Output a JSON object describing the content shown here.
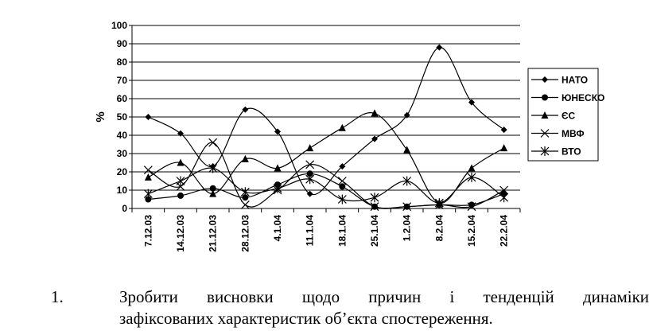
{
  "chart_data": {
    "type": "line",
    "title": "",
    "xlabel": "",
    "ylabel": "%",
    "ylim": [
      0,
      100
    ],
    "yticks": [
      "0",
      "10",
      "20",
      "30",
      "40",
      "50",
      "60",
      "70",
      "80",
      "90",
      "100"
    ],
    "categories": [
      "7.12.03",
      "14.12.03",
      "21.12.03",
      "28.12.03",
      "4.1.04",
      "11.1.04",
      "18.1.04",
      "25.1.04",
      "1.2.04",
      "8.2.04",
      "15.2.04",
      "22.2.04"
    ],
    "legend_position": "right",
    "grid": true,
    "series": [
      {
        "name": "НАТО",
        "marker": "diamond",
        "values": [
          50,
          41,
          23,
          54,
          42,
          8,
          23,
          38,
          51,
          88,
          58,
          43
        ]
      },
      {
        "name": "ЮНЕСКО",
        "marker": "circle",
        "values": [
          5,
          7,
          11,
          6,
          13,
          19,
          12,
          1,
          1,
          2,
          2,
          8
        ]
      },
      {
        "name": "ЄС",
        "marker": "triangle",
        "values": [
          17,
          25,
          8,
          27,
          22,
          33,
          44,
          52,
          32,
          3,
          22,
          33
        ]
      },
      {
        "name": "МВФ",
        "marker": "x",
        "values": [
          21,
          12,
          36,
          2,
          10,
          24,
          15,
          1,
          1,
          2,
          1,
          10
        ]
      },
      {
        "name": "ВТО",
        "marker": "asterisk",
        "values": [
          8,
          15,
          22,
          9,
          11,
          16,
          5,
          6,
          15,
          3,
          17,
          6
        ]
      }
    ]
  },
  "task": {
    "number": "1.",
    "line1_words": [
      "Зробити",
      "висновки",
      "щодо",
      "причин",
      "і",
      "тенденцій",
      "динаміки"
    ],
    "line2": "зафіксованих характеристик об’єкта спостереження."
  },
  "colors": {
    "line": "#000000",
    "grid": "#000000",
    "background": "#ffffff"
  }
}
